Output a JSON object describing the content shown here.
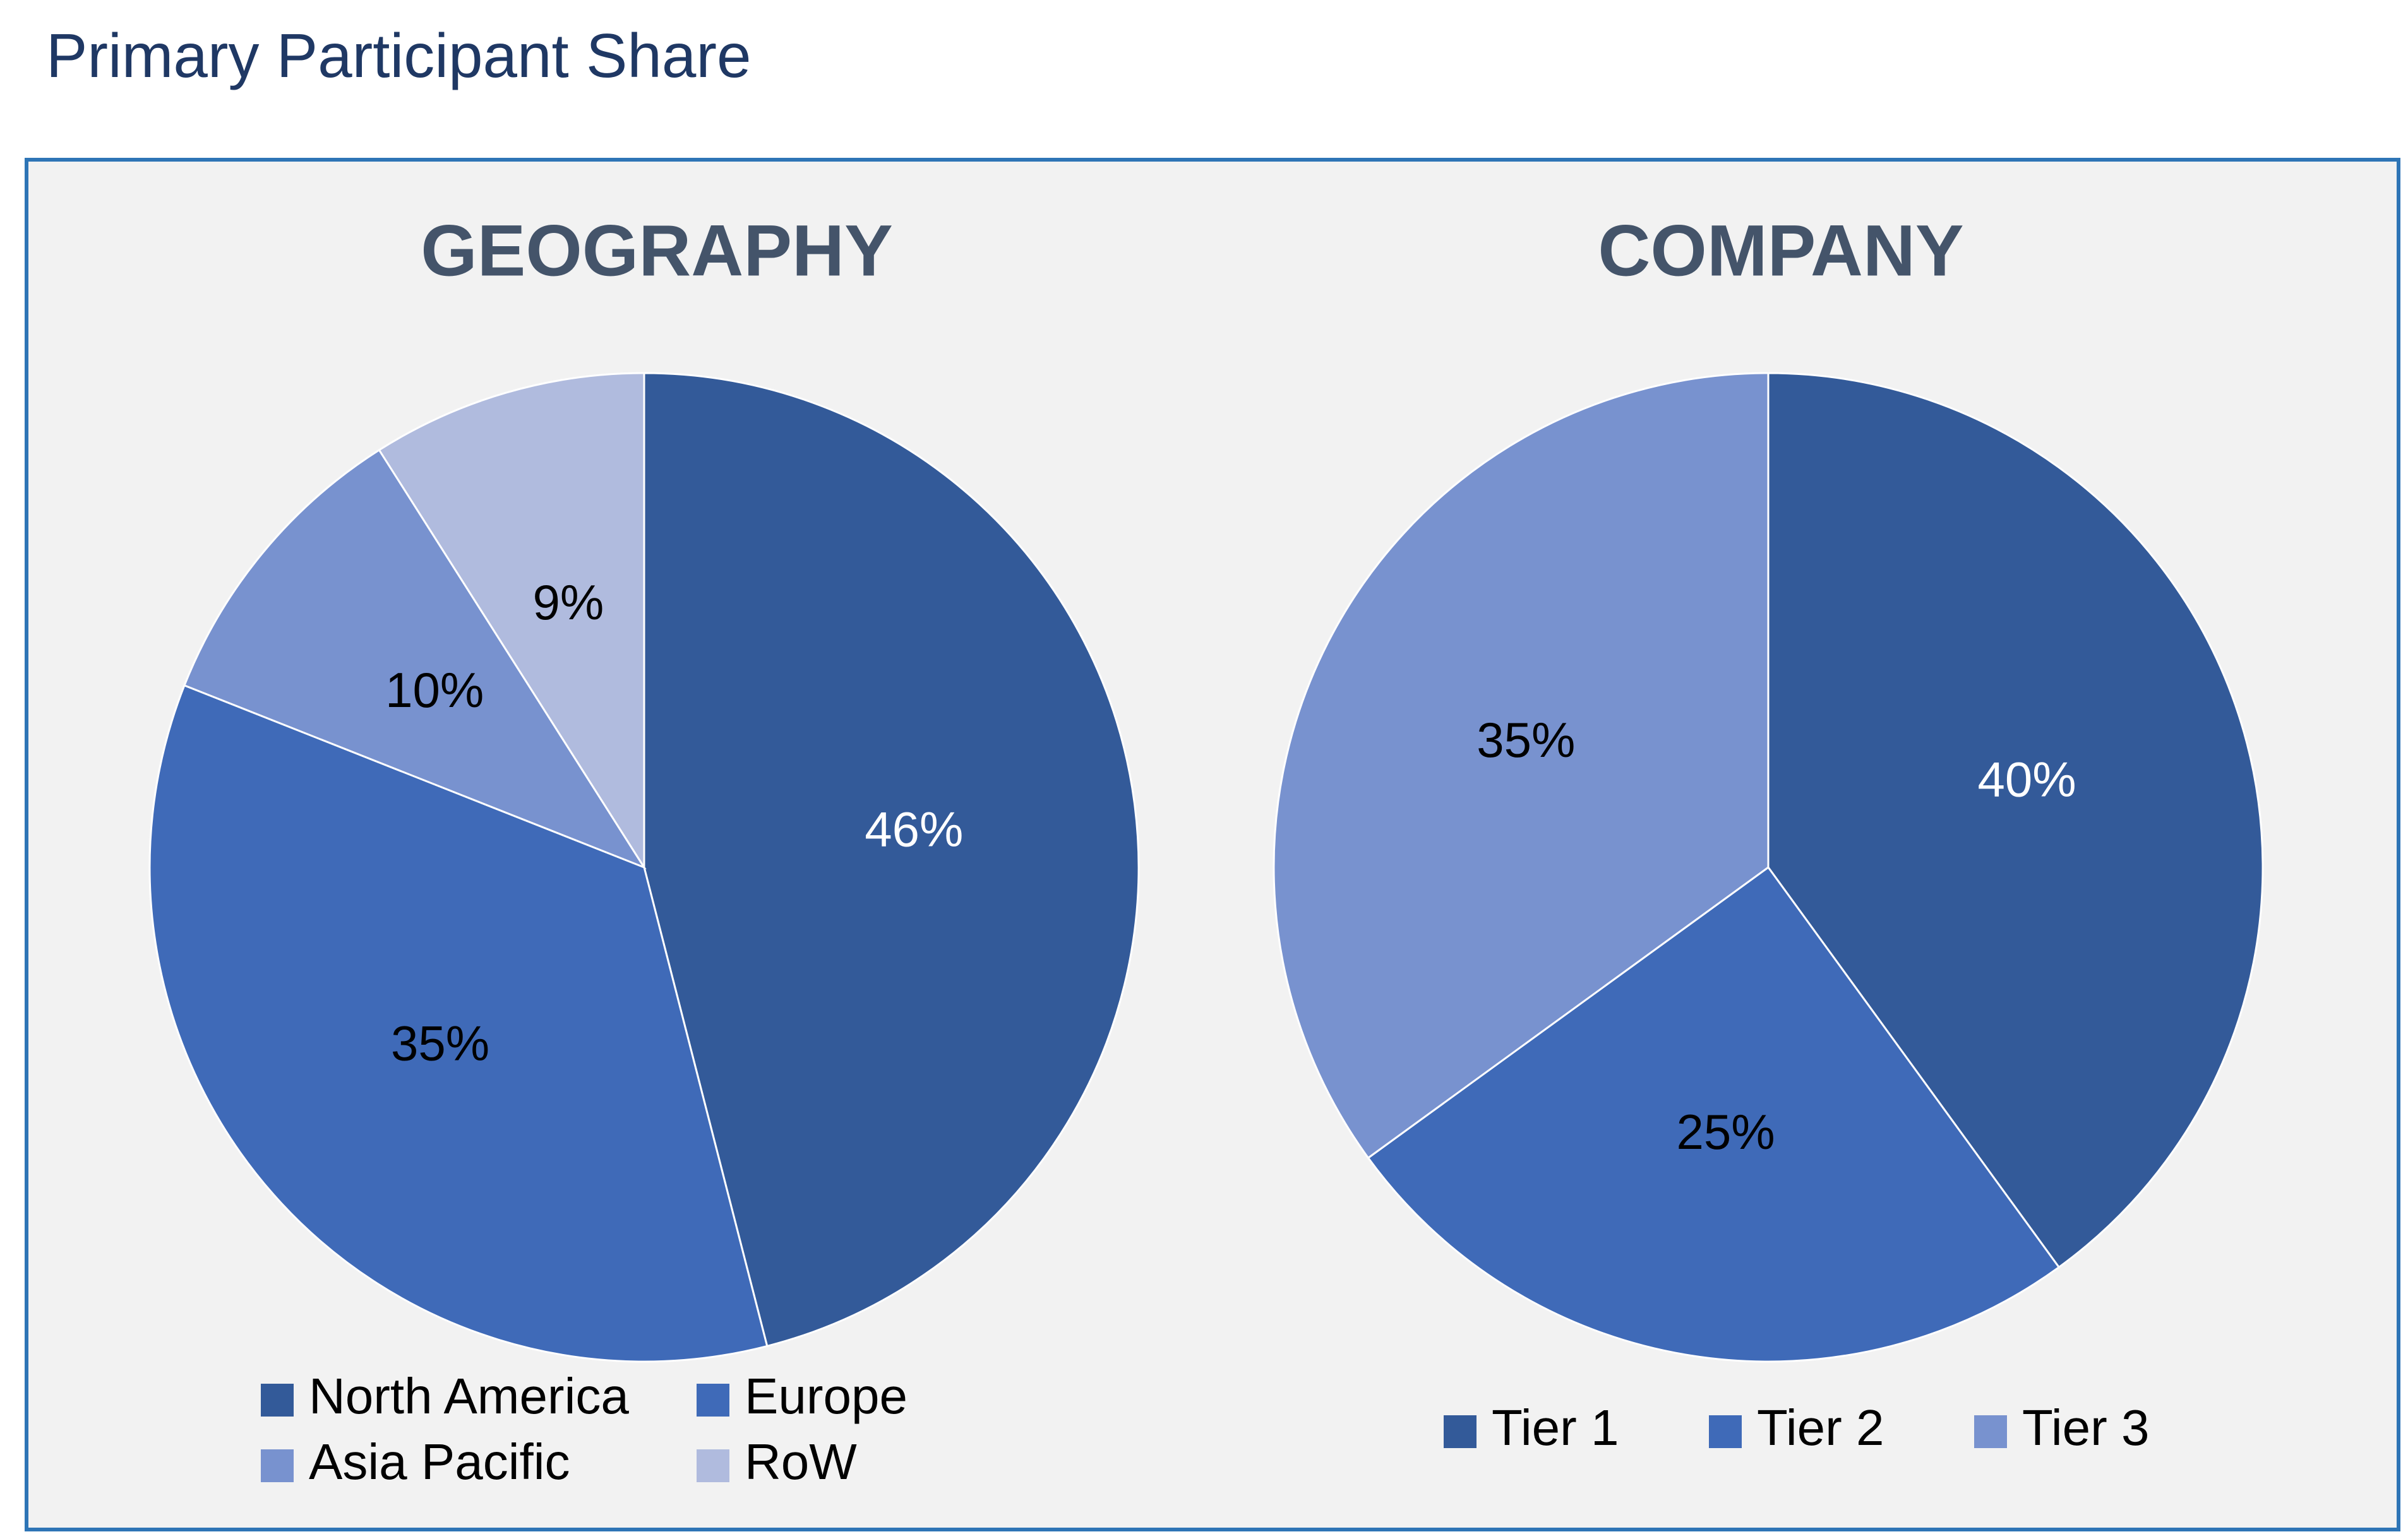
{
  "page_title": "Primary Participant Share",
  "chart_data": [
    {
      "type": "pie",
      "title": "GEOGRAPHY",
      "categories": [
        "North America",
        "Europe",
        "Asia Pacific",
        "RoW"
      ],
      "values": [
        46,
        35,
        10,
        9
      ],
      "labels": [
        "46%",
        "35%",
        "10%",
        "9%"
      ],
      "colors": [
        "#335a99",
        "#3f6ab8",
        "#7892cf",
        "#b0bbde"
      ],
      "label_colors": [
        "#ffffff",
        "#000000",
        "#000000",
        "#000000"
      ],
      "start_angle_deg": 0,
      "direction": "clockwise",
      "legend": "bottom"
    },
    {
      "type": "pie",
      "title": "COMPANY",
      "categories": [
        "Tier 1",
        "Tier 2",
        "Tier 3"
      ],
      "values": [
        40,
        25,
        35
      ],
      "labels": [
        "40%",
        "25%",
        "35%"
      ],
      "colors": [
        "#335a99",
        "#3f6ab8",
        "#7892cf"
      ],
      "label_colors": [
        "#ffffff",
        "#000000",
        "#000000"
      ],
      "start_angle_deg": 0,
      "direction": "clockwise",
      "legend": "bottom"
    }
  ]
}
